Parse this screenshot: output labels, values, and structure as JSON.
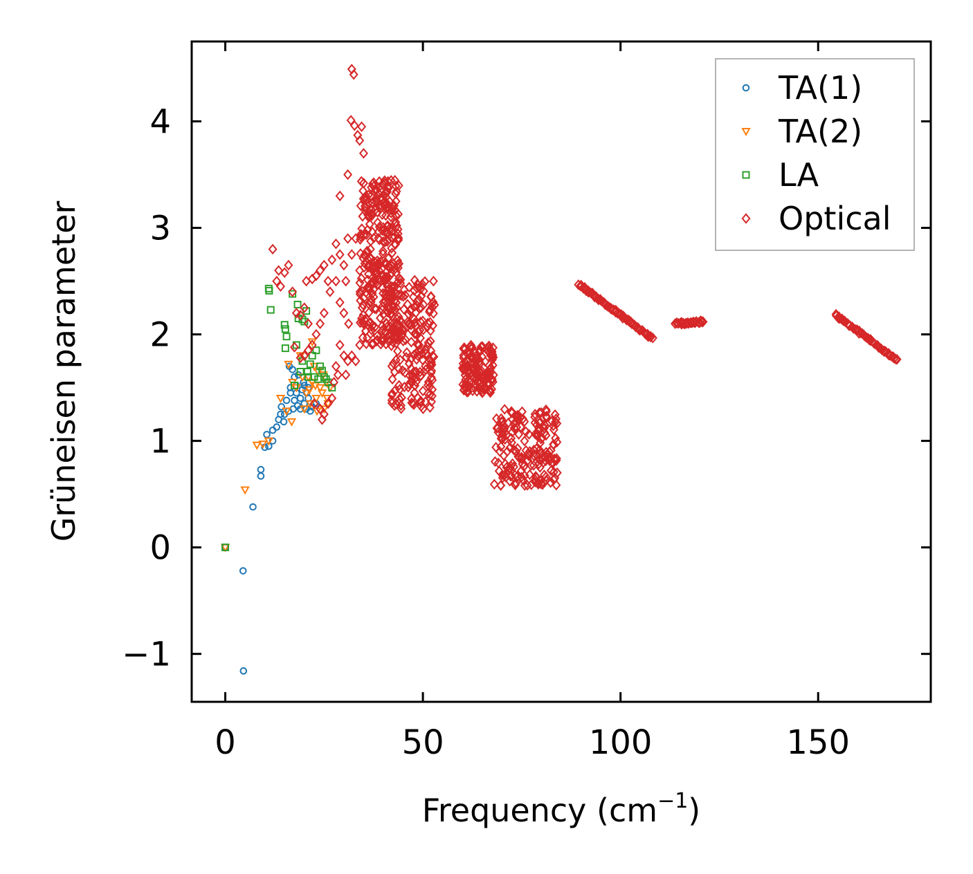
{
  "chart_data": {
    "type": "scatter",
    "title": "",
    "xlabel_main": "Frequency (cm",
    "xlabel_sup": "−1",
    "xlabel_close": ")",
    "ylabel": "Grüneisen parameter",
    "xlim": [
      -8.5,
      178.5
    ],
    "ylim": [
      -1.45,
      4.75
    ],
    "xticks": [
      0,
      50,
      100,
      150
    ],
    "xtick_labels": [
      "0",
      "50",
      "100",
      "150"
    ],
    "yticks": [
      -1,
      0,
      1,
      2,
      3,
      4
    ],
    "ytick_labels": [
      "−1",
      "0",
      "1",
      "2",
      "3",
      "4"
    ],
    "legend_position": "top-right",
    "series": [
      {
        "name": "TA(1)",
        "marker": "circle",
        "color": "#1f77b4",
        "points": [
          [
            0,
            0
          ],
          [
            4.5,
            -0.22
          ],
          [
            4.6,
            -1.16
          ],
          [
            7,
            0.38
          ],
          [
            9,
            0.67
          ],
          [
            9,
            0.73
          ],
          [
            10,
            0.94
          ],
          [
            11,
            0.95
          ],
          [
            10.5,
            1.06
          ],
          [
            12,
            1.0
          ],
          [
            12,
            1.1
          ],
          [
            13,
            1.13
          ],
          [
            13.5,
            1.2
          ],
          [
            14,
            1.25
          ],
          [
            14.2,
            1.32
          ],
          [
            14.8,
            1.18
          ],
          [
            15,
            1.25
          ],
          [
            15.5,
            1.38
          ],
          [
            16,
            1.28
          ],
          [
            16.5,
            1.45
          ],
          [
            16.5,
            1.5
          ],
          [
            17,
            1.67
          ],
          [
            17.5,
            1.6
          ],
          [
            17.5,
            1.38
          ],
          [
            18,
            1.45
          ],
          [
            18,
            1.52
          ],
          [
            18.5,
            1.62
          ],
          [
            19,
            1.3
          ],
          [
            19,
            1.4
          ],
          [
            19.5,
            1.48
          ],
          [
            20,
            1.52
          ],
          [
            20,
            1.35
          ],
          [
            20.5,
            1.3
          ],
          [
            21,
            1.4
          ],
          [
            21.5,
            1.28
          ],
          [
            22,
            1.32
          ],
          [
            23,
            1.35
          ],
          [
            19.8,
            1.55
          ],
          [
            17.2,
            1.3
          ],
          [
            18.3,
            1.33
          ],
          [
            21,
            1.5
          ],
          [
            16.2,
            1.7
          ],
          [
            20.6,
            1.45
          ]
        ]
      },
      {
        "name": "TA(2)",
        "marker": "triangle-down",
        "color": "#ff7f0e",
        "points": [
          [
            0,
            0
          ],
          [
            5,
            0.54
          ],
          [
            8,
            0.96
          ],
          [
            9.5,
            0.97
          ],
          [
            11,
            1.0
          ],
          [
            14,
            1.4
          ],
          [
            15.5,
            1.28
          ],
          [
            16.8,
            1.18
          ],
          [
            16,
            1.72
          ],
          [
            17,
            1.55
          ],
          [
            18,
            1.5
          ],
          [
            19,
            1.8
          ],
          [
            19.5,
            1.6
          ],
          [
            20,
            1.3
          ],
          [
            20.5,
            1.45
          ],
          [
            21,
            1.6
          ],
          [
            21.5,
            1.35
          ],
          [
            22,
            1.93
          ],
          [
            22,
            1.55
          ],
          [
            22.5,
            1.7
          ],
          [
            23,
            1.4
          ],
          [
            23.5,
            1.65
          ],
          [
            24,
            1.5
          ],
          [
            24.5,
            1.45
          ],
          [
            25,
            1.3
          ],
          [
            25.5,
            1.55
          ],
          [
            26,
            1.35
          ],
          [
            26.5,
            1.5
          ],
          [
            24.8,
            1.62
          ],
          [
            23.2,
            1.28
          ],
          [
            21.3,
            1.48
          ],
          [
            22.8,
            1.52
          ],
          [
            25.8,
            1.4
          ]
        ]
      },
      {
        "name": "LA",
        "marker": "square",
        "color": "#2ca02c",
        "points": [
          [
            0,
            0
          ],
          [
            11,
            2.43
          ],
          [
            11.1,
            2.41
          ],
          [
            11.5,
            2.23
          ],
          [
            15,
            2.09
          ],
          [
            15.2,
            2.05
          ],
          [
            15.5,
            1.98
          ],
          [
            15.2,
            1.87
          ],
          [
            17,
            2.38
          ],
          [
            18.3,
            2.28
          ],
          [
            18.5,
            2.15
          ],
          [
            19,
            1.65
          ],
          [
            19.5,
            2.14
          ],
          [
            20,
            2.12
          ],
          [
            20.5,
            2.22
          ],
          [
            21,
            1.6
          ],
          [
            21.5,
            1.72
          ],
          [
            22,
            1.8
          ],
          [
            23,
            1.85
          ],
          [
            24,
            1.7
          ],
          [
            25,
            1.6
          ],
          [
            26,
            1.55
          ],
          [
            27,
            1.5
          ],
          [
            18,
            1.9
          ],
          [
            19.5,
            1.75
          ],
          [
            20.8,
            1.65
          ],
          [
            22.5,
            1.6
          ],
          [
            23.5,
            1.58
          ],
          [
            17.5,
            1.52
          ],
          [
            24.5,
            1.66
          ],
          [
            25.5,
            1.58
          ]
        ]
      },
      {
        "name": "Optical",
        "marker": "diamond",
        "color": "#d62728",
        "points": [
          [
            32,
            4.49
          ],
          [
            32.5,
            4.44
          ],
          [
            31.8,
            4.01
          ],
          [
            32.7,
            3.96
          ],
          [
            34.5,
            3.95
          ],
          [
            33.5,
            3.87
          ],
          [
            34,
            3.82
          ],
          [
            35,
            3.7
          ],
          [
            31,
            3.5
          ],
          [
            29,
            3.3
          ],
          [
            12,
            2.8
          ],
          [
            13,
            2.5
          ],
          [
            13.5,
            2.6
          ],
          [
            15,
            2.58
          ],
          [
            16,
            2.65
          ],
          [
            14,
            2.45
          ],
          [
            17,
            2.4
          ],
          [
            18,
            2.2
          ],
          [
            19,
            2.18
          ],
          [
            20,
            2.25
          ],
          [
            21,
            2.1
          ],
          [
            20.5,
            2.5
          ],
          [
            22,
            2.52
          ],
          [
            23,
            2.55
          ],
          [
            24,
            2.6
          ],
          [
            25,
            2.65
          ],
          [
            26,
            2.5
          ],
          [
            27,
            2.7
          ],
          [
            28,
            2.85
          ],
          [
            29,
            2.75
          ],
          [
            30,
            2.65
          ],
          [
            31,
            2.9
          ],
          [
            32,
            2.75
          ],
          [
            33,
            2.9
          ],
          [
            34,
            2.6
          ],
          [
            30.5,
            2.5
          ],
          [
            28,
            2.5
          ],
          [
            26.5,
            2.4
          ],
          [
            25,
            2.2
          ],
          [
            24,
            2.1
          ],
          [
            23,
            2.0
          ],
          [
            22,
            1.9
          ],
          [
            21,
            1.85
          ],
          [
            20,
            1.8
          ],
          [
            19,
            1.78
          ],
          [
            22.5,
            1.35
          ],
          [
            24,
            1.3
          ],
          [
            25,
            1.25
          ],
          [
            26,
            1.35
          ],
          [
            27,
            1.4
          ],
          [
            28,
            1.7
          ],
          [
            29,
            1.9
          ],
          [
            30,
            1.8
          ],
          [
            31,
            1.75
          ],
          [
            32,
            1.8
          ],
          [
            33,
            1.75
          ],
          [
            34,
            1.9
          ],
          [
            17.5,
            1.88
          ],
          [
            29,
            2.3
          ],
          [
            30,
            2.2
          ],
          [
            31.2,
            2.1
          ],
          [
            24.5,
            1.2
          ],
          [
            27.5,
            1.55
          ],
          [
            28.5,
            1.62
          ],
          [
            30.5,
            1.62
          ]
        ],
        "clusters": [
          {
            "x": [
              34,
              44
            ],
            "y": [
              1.9,
              3.45
            ],
            "n": 320
          },
          {
            "x": [
              42,
              53
            ],
            "y": [
              1.3,
              2.55
            ],
            "n": 200
          },
          {
            "x": [
              60,
              68
            ],
            "y": [
              1.45,
              1.9
            ],
            "n": 150
          },
          {
            "x": [
              68,
              84
            ],
            "y": [
              0.58,
              1.3
            ],
            "n": 190
          }
        ],
        "bands": [
          {
            "x": [
              89.5,
              108
            ],
            "y": [
              2.47,
              1.96
            ],
            "n": 70
          },
          {
            "x": [
              114,
              121
            ],
            "y": [
              2.1,
              2.12
            ],
            "n": 30
          },
          {
            "x": [
              154.5,
              170
            ],
            "y": [
              2.18,
              1.76
            ],
            "n": 55
          }
        ]
      }
    ]
  }
}
